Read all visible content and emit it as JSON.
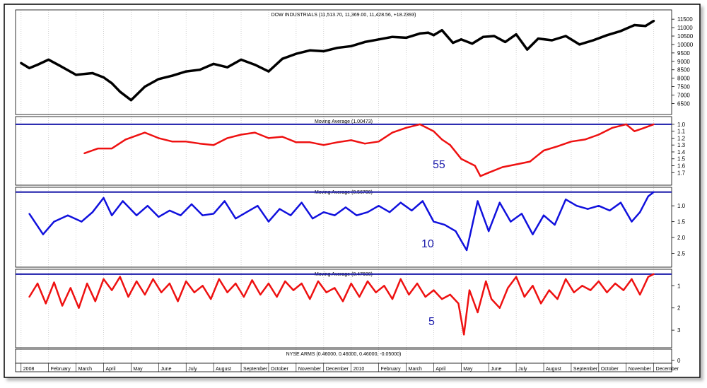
{
  "chart_data": [
    {
      "type": "line",
      "title": "DOW INDUSTRIALS (11,513.70, 11,369.00, 11,428.56, +18.2393)",
      "series_name": "Dow Industrials",
      "ylim": [
        6100,
        11800
      ],
      "ticks": [
        6500,
        7000,
        7500,
        8000,
        8500,
        9000,
        9500,
        10000,
        10500,
        11000,
        11500
      ],
      "tick_labels": [
        "6500",
        "7000",
        "7500",
        "8000",
        "8500",
        "9000",
        "9500",
        "10000",
        "10500",
        "11000",
        "11500"
      ],
      "x": [
        0,
        0.3,
        0.6,
        1,
        1.4,
        2,
        2.6,
        3,
        3.3,
        3.6,
        4,
        4.5,
        5,
        5.5,
        6,
        6.5,
        7,
        7.5,
        8,
        8.5,
        9,
        9.5,
        10,
        10.5,
        11,
        11.5,
        12,
        12.5,
        13,
        13.5,
        14,
        14.5,
        14.8,
        15,
        15.3,
        15.7,
        16,
        16.4,
        16.8,
        17.2,
        17.6,
        18,
        18.4,
        18.8,
        19.3,
        19.8,
        20.3,
        20.8,
        21.3,
        21.8,
        22.3,
        22.7,
        23
      ],
      "values": [
        8900,
        8600,
        8800,
        9100,
        8750,
        8200,
        8300,
        8050,
        7700,
        7200,
        6700,
        7500,
        7950,
        8150,
        8400,
        8500,
        8850,
        8650,
        9100,
        8800,
        8400,
        9150,
        9450,
        9650,
        9600,
        9800,
        9900,
        10150,
        10300,
        10450,
        10400,
        10650,
        10700,
        10550,
        10850,
        10100,
        10300,
        10050,
        10450,
        10500,
        10150,
        10600,
        9700,
        10350,
        10250,
        10500,
        10000,
        10250,
        10550,
        10800,
        11150,
        11100,
        11400
      ],
      "color": "#000000"
    },
    {
      "type": "line",
      "title": "Moving Average (1.00473)",
      "label": "55",
      "ylim": [
        0.95,
        1.82
      ],
      "ticks": [
        1.0,
        1.1,
        1.2,
        1.3,
        1.4,
        1.5,
        1.6,
        1.7
      ],
      "tick_labels": [
        "1.0",
        "1.1",
        "1.2",
        "1.3",
        "1.4",
        "1.5",
        "1.6",
        "1.7"
      ],
      "reference_line": 1.0,
      "x": [
        2.3,
        2.8,
        3.3,
        3.8,
        4.5,
        5.0,
        5.5,
        6.0,
        6.5,
        7.0,
        7.5,
        8.0,
        8.5,
        9.0,
        9.5,
        10.0,
        10.5,
        11.0,
        11.5,
        12.0,
        12.5,
        13.0,
        13.5,
        14.0,
        14.5,
        15.0,
        15.3,
        15.6,
        16.0,
        16.5,
        16.7,
        17.0,
        17.5,
        18.0,
        18.5,
        19.0,
        19.5,
        20.0,
        20.5,
        21.0,
        21.5,
        22.0,
        22.3,
        22.6,
        23.0
      ],
      "values": [
        1.42,
        1.35,
        1.35,
        1.22,
        1.12,
        1.2,
        1.25,
        1.25,
        1.28,
        1.3,
        1.2,
        1.15,
        1.12,
        1.2,
        1.18,
        1.26,
        1.26,
        1.3,
        1.26,
        1.23,
        1.28,
        1.25,
        1.12,
        1.05,
        1.0,
        1.1,
        1.22,
        1.3,
        1.5,
        1.6,
        1.75,
        1.7,
        1.62,
        1.58,
        1.54,
        1.38,
        1.32,
        1.25,
        1.22,
        1.15,
        1.05,
        1.0,
        1.1,
        1.06,
        1.0
      ],
      "color": "#ee1111"
    },
    {
      "type": "line",
      "title": "Moving Average (0.56700)",
      "label": "10",
      "ylim": [
        0.55,
        2.8
      ],
      "ticks": [
        1.0,
        1.5,
        2.0,
        2.5
      ],
      "tick_labels": [
        "1.0",
        "1.5",
        "2.0",
        "2.5"
      ],
      "reference_line": 0.567,
      "x": [
        0.3,
        0.8,
        1.2,
        1.7,
        2.2,
        2.6,
        3.0,
        3.3,
        3.7,
        4.2,
        4.6,
        5.0,
        5.4,
        5.8,
        6.2,
        6.6,
        7.0,
        7.4,
        7.8,
        8.2,
        8.6,
        9.0,
        9.4,
        9.8,
        10.2,
        10.6,
        11.0,
        11.4,
        11.8,
        12.2,
        12.6,
        13.0,
        13.4,
        13.8,
        14.2,
        14.6,
        15.0,
        15.4,
        15.8,
        16.2,
        16.6,
        17.0,
        17.4,
        17.8,
        18.2,
        18.6,
        19.0,
        19.4,
        19.8,
        20.2,
        20.6,
        21.0,
        21.4,
        21.8,
        22.2,
        22.5,
        22.8,
        23.0
      ],
      "values": [
        1.25,
        1.9,
        1.5,
        1.3,
        1.5,
        1.2,
        0.75,
        1.3,
        0.85,
        1.3,
        1.0,
        1.35,
        1.15,
        1.3,
        0.95,
        1.3,
        1.25,
        0.85,
        1.4,
        1.2,
        1.0,
        1.5,
        1.1,
        1.3,
        0.9,
        1.4,
        1.2,
        1.3,
        1.05,
        1.3,
        1.2,
        1.0,
        1.2,
        0.9,
        1.15,
        0.85,
        1.5,
        1.6,
        1.8,
        2.4,
        0.85,
        1.8,
        0.9,
        1.5,
        1.25,
        1.9,
        1.3,
        1.6,
        0.8,
        1.0,
        1.1,
        1.0,
        1.15,
        0.9,
        1.5,
        1.2,
        0.7,
        0.567
      ],
      "color": "#1111dd"
    },
    {
      "type": "line",
      "title": "Moving Average (0.47600)",
      "label": "5",
      "ylim": [
        0.45,
        3.6
      ],
      "ticks": [
        1,
        2,
        3
      ],
      "tick_labels": [
        "1",
        "2",
        "3"
      ],
      "reference_line": 0.476,
      "x": [
        0.3,
        0.6,
        0.9,
        1.2,
        1.5,
        1.8,
        2.1,
        2.4,
        2.7,
        3.0,
        3.3,
        3.6,
        3.9,
        4.2,
        4.5,
        4.8,
        5.1,
        5.4,
        5.7,
        6.0,
        6.3,
        6.6,
        6.9,
        7.2,
        7.5,
        7.8,
        8.1,
        8.4,
        8.7,
        9.0,
        9.3,
        9.6,
        9.9,
        10.2,
        10.5,
        10.8,
        11.1,
        11.4,
        11.7,
        12.0,
        12.3,
        12.6,
        12.9,
        13.2,
        13.5,
        13.8,
        14.1,
        14.4,
        14.7,
        15.0,
        15.3,
        15.6,
        15.9,
        16.1,
        16.3,
        16.6,
        16.9,
        17.1,
        17.4,
        17.7,
        18.0,
        18.3,
        18.6,
        18.9,
        19.2,
        19.5,
        19.8,
        20.1,
        20.4,
        20.7,
        21.0,
        21.3,
        21.6,
        21.9,
        22.2,
        22.5,
        22.8,
        23.0
      ],
      "values": [
        1.5,
        0.9,
        1.8,
        0.85,
        1.9,
        1.1,
        2.0,
        0.9,
        1.7,
        0.7,
        1.2,
        0.6,
        1.5,
        0.8,
        1.4,
        0.7,
        1.3,
        0.9,
        1.7,
        0.8,
        1.3,
        1.0,
        1.6,
        0.7,
        1.3,
        0.9,
        1.5,
        0.75,
        1.4,
        0.9,
        1.5,
        0.8,
        1.2,
        0.9,
        1.6,
        0.8,
        1.3,
        1.1,
        1.7,
        0.9,
        1.5,
        0.8,
        1.3,
        1.0,
        1.6,
        0.7,
        1.4,
        0.9,
        1.5,
        1.2,
        1.6,
        1.4,
        1.8,
        3.2,
        1.2,
        2.2,
        0.8,
        1.6,
        2.0,
        1.1,
        0.6,
        1.5,
        1.0,
        1.8,
        1.2,
        1.6,
        0.7,
        1.3,
        1.0,
        1.2,
        0.8,
        1.3,
        0.9,
        1.2,
        0.7,
        1.4,
        0.6,
        0.476
      ],
      "color": "#ee1111"
    },
    {
      "type": "table",
      "title": "NYSE ARMS (0.46000, 0.46000, 0.46000, -0.05000)",
      "ticks": [
        0
      ],
      "tick_labels": [
        "0"
      ]
    }
  ],
  "x_axis": {
    "labels": [
      "2008",
      "February",
      "March",
      "April",
      "May",
      "June",
      "July",
      "August",
      "September",
      "October",
      "November",
      "December",
      "2010",
      "February",
      "March",
      "April",
      "May",
      "June",
      "July",
      "August",
      "September",
      "October",
      "November",
      "December"
    ],
    "positions": [
      0,
      1,
      2,
      3,
      4,
      5,
      6,
      7,
      8,
      9,
      10,
      11,
      12,
      13,
      14,
      15,
      16,
      17,
      18,
      19,
      20,
      21,
      22,
      23
    ],
    "xlim": [
      -0.2,
      23.6
    ]
  }
}
